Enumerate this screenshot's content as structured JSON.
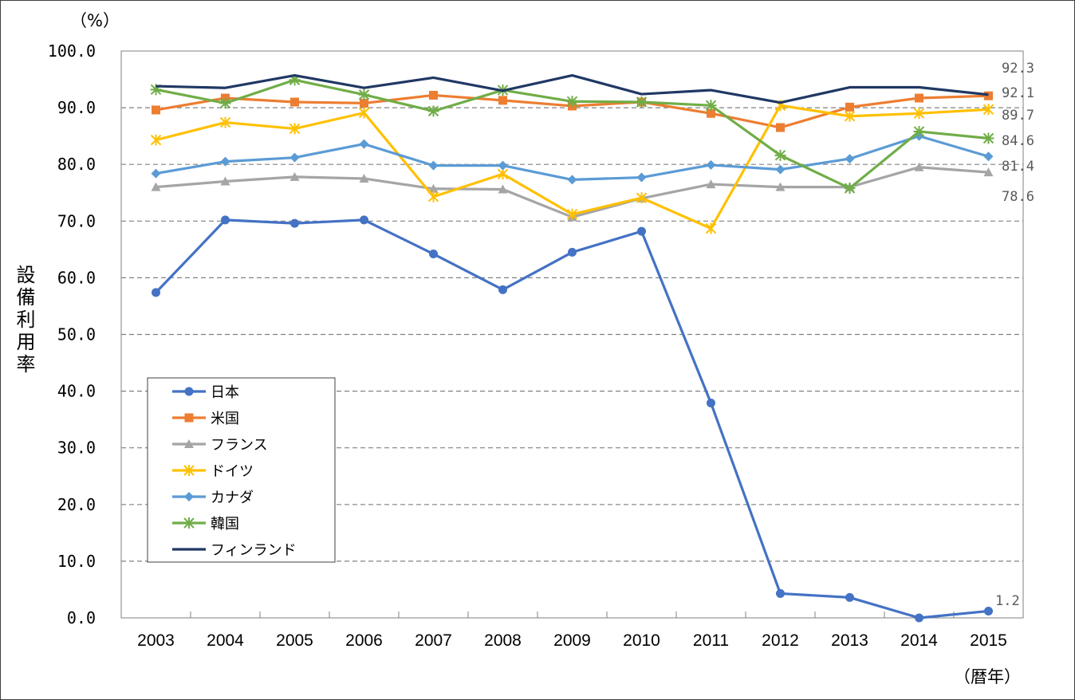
{
  "chart_data": {
    "type": "line",
    "y_unit": "（%）",
    "x_unit": "（暦年）",
    "ylabel": "設備利用率",
    "ylim": [
      0,
      100
    ],
    "ytick_step": 10,
    "ytick_labels": [
      "0.0",
      "10.0",
      "20.0",
      "30.0",
      "40.0",
      "50.0",
      "60.0",
      "70.0",
      "80.0",
      "90.0",
      "100.0"
    ],
    "grid": "horizontal-dashed",
    "legend_position": "lower-left",
    "categories": [
      "2003",
      "2004",
      "2005",
      "2006",
      "2007",
      "2008",
      "2009",
      "2010",
      "2011",
      "2012",
      "2013",
      "2014",
      "2015"
    ],
    "series": [
      {
        "name": "日本",
        "color": "#4472C4",
        "marker": "circle",
        "values": [
          57.4,
          70.2,
          69.6,
          70.2,
          64.2,
          57.9,
          64.5,
          68.2,
          37.9,
          4.3,
          3.6,
          0.0,
          1.2
        ],
        "end_label": "1.2"
      },
      {
        "name": "米国",
        "color": "#ED7D31",
        "marker": "square",
        "values": [
          89.6,
          91.7,
          91.0,
          90.8,
          92.2,
          91.3,
          90.3,
          91.0,
          89.0,
          86.5,
          90.1,
          91.7,
          92.1
        ],
        "end_label": "92.1"
      },
      {
        "name": "フランス",
        "color": "#A5A5A5",
        "marker": "triangle",
        "values": [
          76.0,
          77.0,
          77.8,
          77.5,
          75.7,
          75.6,
          70.7,
          74.0,
          76.5,
          76.0,
          76.0,
          79.5,
          78.6
        ],
        "end_label": "78.6"
      },
      {
        "name": "ドイツ",
        "color": "#FFC000",
        "marker": "star",
        "values": [
          84.3,
          87.4,
          86.3,
          89.1,
          74.3,
          78.3,
          71.2,
          74.1,
          68.7,
          90.4,
          88.5,
          89.0,
          89.7
        ],
        "end_label": "89.7"
      },
      {
        "name": "カナダ",
        "color": "#5B9BD5",
        "marker": "diamond",
        "values": [
          78.4,
          80.5,
          81.2,
          83.6,
          79.8,
          79.8,
          77.3,
          77.7,
          79.9,
          79.1,
          81.0,
          85.0,
          81.4
        ],
        "end_label": "81.4"
      },
      {
        "name": "韓国",
        "color": "#70AD47",
        "marker": "asterisk",
        "values": [
          93.2,
          90.8,
          94.9,
          92.3,
          89.4,
          93.1,
          91.1,
          91.0,
          90.4,
          81.6,
          75.8,
          85.8,
          84.6
        ],
        "end_label": "84.6"
      },
      {
        "name": "フィンランド",
        "color": "#203864",
        "marker": "none",
        "values": [
          93.8,
          93.5,
          95.7,
          93.5,
          95.3,
          93.0,
          95.7,
          92.4,
          93.1,
          90.9,
          93.6,
          93.6,
          92.3
        ],
        "end_label": "92.3"
      }
    ]
  }
}
